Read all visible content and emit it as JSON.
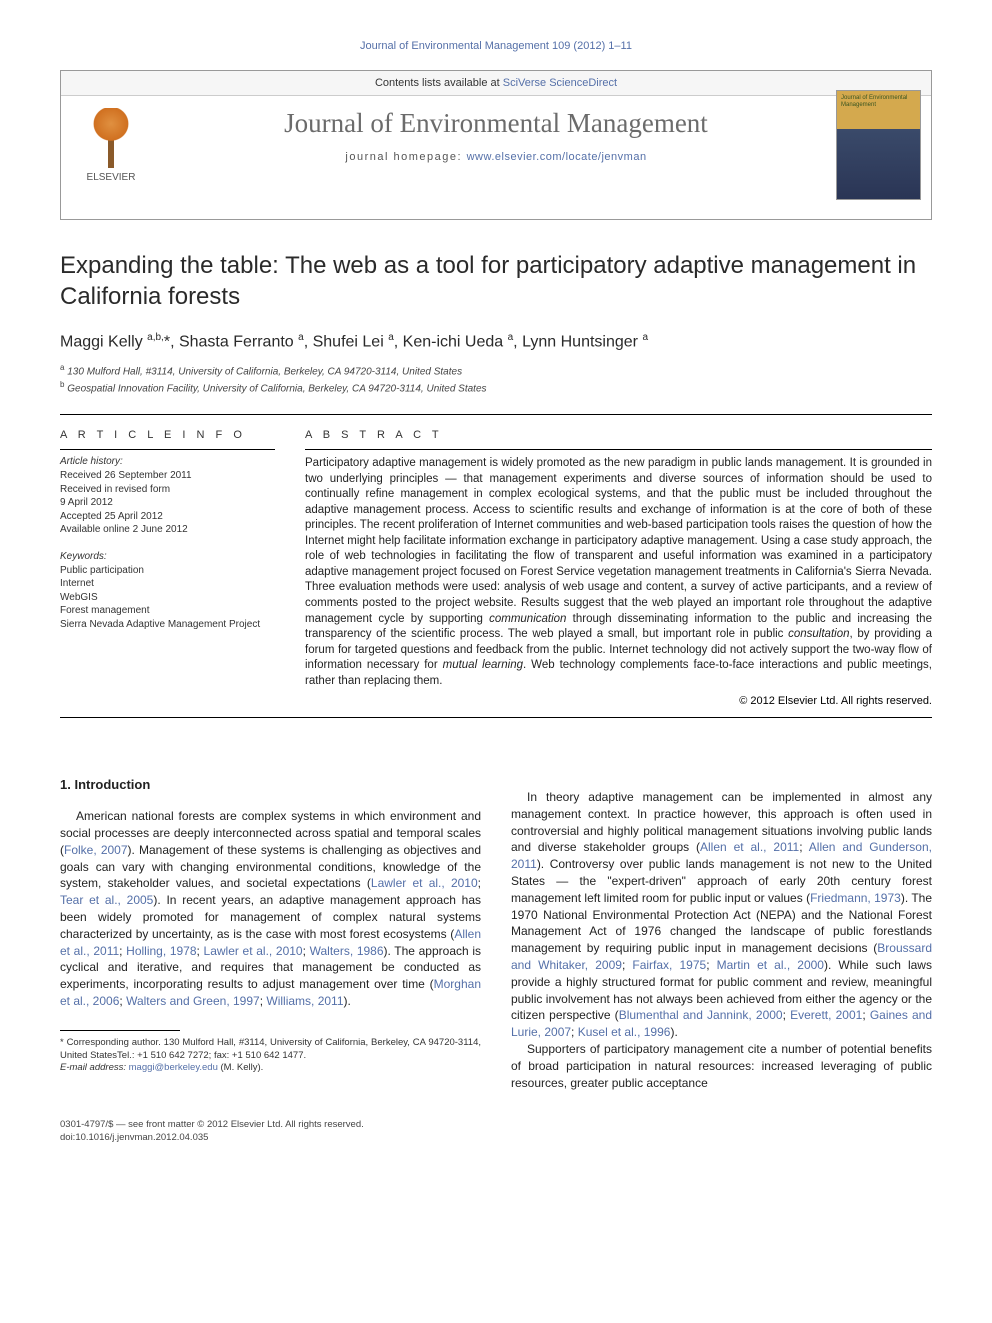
{
  "runningHeader": "Journal of Environmental Management 109 (2012) 1–11",
  "headerBox": {
    "contentsLine_pre": "Contents lists available at ",
    "contentsLine_link": "SciVerse ScienceDirect",
    "journalName": "Journal of Environmental Management",
    "homepage_pre": "journal homepage: ",
    "homepage_url": "www.elsevier.com/locate/jenvman",
    "publisher": "ELSEVIER",
    "coverTitle": "Journal of Environmental Management"
  },
  "title": "Expanding the table: The web as a tool for participatory adaptive management in California forests",
  "authorsHtml": "Maggi Kelly <sup>a,b,</sup>*, Shasta Ferranto <sup>a</sup>, Shufei Lei <sup>a</sup>, Ken-ichi Ueda <sup>a</sup>, Lynn Huntsinger <sup>a</sup>",
  "affiliations": [
    {
      "sup": "a",
      "text": "130 Mulford Hall, #3114, University of California, Berkeley, CA 94720-3114, United States"
    },
    {
      "sup": "b",
      "text": "Geospatial Innovation Facility, University of California, Berkeley, CA 94720-3114, United States"
    }
  ],
  "articleInfo": {
    "heading": "A R T I C L E   I N F O",
    "history": {
      "label": "Article history:",
      "lines": [
        "Received 26 September 2011",
        "Received in revised form",
        "9 April 2012",
        "Accepted 25 April 2012",
        "Available online 2 June 2012"
      ]
    },
    "keywords": {
      "label": "Keywords:",
      "items": [
        "Public participation",
        "Internet",
        "WebGIS",
        "Forest management",
        "Sierra Nevada Adaptive Management Project"
      ]
    }
  },
  "abstract": {
    "heading": "A B S T R A C T",
    "text_pre": "Participatory adaptive management is widely promoted as the new paradigm in public lands management. It is grounded in two underlying principles — that management experiments and diverse sources of information should be used to continually refine management in complex ecological systems, and that the public must be included throughout the adaptive management process. Access to scientific results and exchange of information is at the core of both of these principles. The recent proliferation of Internet communities and web-based participation tools raises the question of how the Internet might help facilitate information exchange in participatory adaptive management. Using a case study approach, the role of web technologies in facilitating the flow of transparent and useful information was examined in a participatory adaptive management project focused on Forest Service vegetation management treatments in California's Sierra Nevada. Three evaluation methods were used: analysis of web usage and content, a survey of active participants, and a review of comments posted to the project website. Results suggest that the web played an important role throughout the adaptive management cycle by supporting ",
    "emph1": "communication",
    "text_mid1": " through disseminating information to the public and increasing the transparency of the scientific process. The web played a small, but important role in public ",
    "emph2": "consultation",
    "text_mid2": ", by providing a forum for targeted questions and feedback from the public. Internet technology did not actively support the two-way flow of information necessary for ",
    "emph3": "mutual learning",
    "text_post": ". Web technology complements face-to-face interactions and public meetings, rather than replacing them.",
    "copyright": "© 2012 Elsevier Ltd. All rights reserved."
  },
  "section1": {
    "heading": "1. Introduction",
    "col1": {
      "p1_a": "American national forests are complex systems in which environment and social processes are deeply interconnected across spatial and temporal scales (",
      "c1": "Folke, 2007",
      "p1_b": "). Management of these systems is challenging as objectives and goals can vary with changing environmental conditions, knowledge of the system, stakeholder values, and societal expectations (",
      "c2": "Lawler et al., 2010",
      "p1_c": "; ",
      "c3": "Tear et al., 2005",
      "p1_d": "). In recent years, an adaptive management approach has been widely promoted for management of complex natural systems characterized by uncertainty, as is the case with most forest ecosystems (",
      "c4": "Allen et al., 2011",
      "p1_e": "; ",
      "c5": "Holling, 1978",
      "p1_f": "; ",
      "c6": "Lawler et al., 2010",
      "p1_g": "; ",
      "c7": "Walters, 1986",
      "p1_h": "). The approach is cyclical and iterative, and requires that management be conducted as experiments, incorporating results to adjust management over time (",
      "c8": "Morghan et al., 2006",
      "p1_i": "; ",
      "c9": "Walters and Green, 1997",
      "p1_j": "; ",
      "c10": "Williams, 2011",
      "p1_k": ")."
    },
    "col2": {
      "p1_a": "In theory adaptive management can be implemented in almost any management context. In practice however, this approach is often used in controversial and highly political management situations involving public lands and diverse stakeholder groups (",
      "c1": "Allen et al., 2011",
      "p1_b": "; ",
      "c2": "Allen and Gunderson, 2011",
      "p1_c": "). Controversy over public lands management is not new to the United States — the \"expert-driven\" approach of early 20th century forest management left limited room for public input or values (",
      "c3": "Friedmann, 1973",
      "p1_d": "). The 1970 National Environmental Protection Act (NEPA) and the National Forest Management Act of 1976 changed the landscape of public forestlands management by requiring public input in management decisions (",
      "c4": "Broussard and Whitaker, 2009",
      "p1_e": "; ",
      "c5": "Fairfax, 1975",
      "p1_f": "; ",
      "c6": "Martin et al., 2000",
      "p1_g": "). While such laws provide a highly structured format for public comment and review, meaningful public involvement has not always been achieved from either the agency or the citizen perspective (",
      "c7": "Blumenthal and Jannink, 2000",
      "p1_h": "; ",
      "c8": "Everett, 2001",
      "p1_i": "; ",
      "c9": "Gaines and Lurie, 2007",
      "p1_j": "; ",
      "c10": "Kusel et al., 1996",
      "p1_k": ").",
      "p2": "Supporters of participatory management cite a number of potential benefits of broad participation in natural resources: increased leveraging of public resources, greater public acceptance"
    }
  },
  "footnotes": {
    "corr": "* Corresponding author. 130 Mulford Hall, #3114, University of California, Berkeley, CA 94720-3114, United StatesTel.: +1 510 642 7272; fax: +1 510 642 1477.",
    "email_label": "E-mail address: ",
    "email": "maggi@berkeley.edu",
    "email_post": " (M. Kelly)."
  },
  "footer": {
    "line1": "0301-4797/$ — see front matter © 2012 Elsevier Ltd. All rights reserved.",
    "line2": "doi:10.1016/j.jenvman.2012.04.035"
  },
  "colors": {
    "link": "#5570a8",
    "text": "#222222",
    "headerGrey": "#6b6b6b"
  }
}
